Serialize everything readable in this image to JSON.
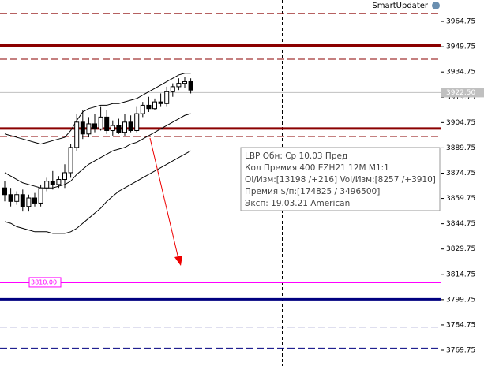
{
  "chart_data": {
    "type": "candlestick",
    "header": "SmartUpdater",
    "ylim": [
      3760.4,
      3977.4
    ],
    "yticks": [
      3964.75,
      3949.75,
      3934.75,
      3919.75,
      3904.75,
      3889.75,
      3874.75,
      3859.75,
      3844.75,
      3829.75,
      3814.75,
      3799.75,
      3784.75,
      3769.75
    ],
    "up_color": "#ffffff",
    "down_color": "#000000",
    "ohlc": [
      [
        3866,
        3870,
        3858,
        3862
      ],
      [
        3862,
        3866,
        3855,
        3858
      ],
      [
        3858,
        3864,
        3856,
        3862
      ],
      [
        3862,
        3865,
        3852,
        3855
      ],
      [
        3855,
        3862,
        3852,
        3860
      ],
      [
        3860,
        3863,
        3855,
        3857
      ],
      [
        3857,
        3868,
        3855,
        3866
      ],
      [
        3866,
        3872,
        3864,
        3870
      ],
      [
        3870,
        3876,
        3865,
        3868
      ],
      [
        3868,
        3873,
        3866,
        3871
      ],
      [
        3871,
        3880,
        3866,
        3875
      ],
      [
        3875,
        3892,
        3872,
        3890
      ],
      [
        3890,
        3910,
        3888,
        3905
      ],
      [
        3905,
        3912,
        3895,
        3898
      ],
      [
        3898,
        3908,
        3896,
        3904
      ],
      [
        3904,
        3910,
        3899,
        3901
      ],
      [
        3901,
        3914,
        3900,
        3908
      ],
      [
        3908,
        3912,
        3898,
        3900
      ],
      [
        3900,
        3906,
        3897,
        3903
      ],
      [
        3903,
        3907,
        3898,
        3899
      ],
      [
        3899,
        3910,
        3897,
        3905
      ],
      [
        3905,
        3909,
        3899,
        3900
      ],
      [
        3900,
        3914,
        3899,
        3910
      ],
      [
        3910,
        3917,
        3908,
        3915
      ],
      [
        3915,
        3920,
        3911,
        3913
      ],
      [
        3913,
        3919,
        3912,
        3917
      ],
      [
        3917,
        3922,
        3914,
        3916
      ],
      [
        3916,
        3926,
        3914,
        3923
      ],
      [
        3923,
        3928,
        3920,
        3926
      ],
      [
        3926,
        3931,
        3924,
        3928
      ],
      [
        3928,
        3932,
        3925,
        3929
      ],
      [
        3929,
        3931,
        3922,
        3924
      ]
    ],
    "bands": {
      "color": "#000000",
      "upper": [
        3898,
        3897,
        3896,
        3895,
        3894,
        3893,
        3892,
        3893,
        3894,
        3895,
        3896,
        3900,
        3906,
        3911,
        3913,
        3914,
        3915,
        3915,
        3916,
        3916,
        3917,
        3918,
        3919,
        3921,
        3923,
        3925,
        3927,
        3929,
        3931,
        3933,
        3934,
        3934
      ],
      "middle": [
        3875,
        3873,
        3871,
        3869,
        3868,
        3867,
        3866,
        3866,
        3866,
        3867,
        3868,
        3870,
        3874,
        3877,
        3880,
        3882,
        3884,
        3886,
        3888,
        3889,
        3890,
        3892,
        3893,
        3895,
        3897,
        3899,
        3901,
        3903,
        3905,
        3907,
        3909,
        3910
      ],
      "lower": [
        3846,
        3845,
        3843,
        3842,
        3841,
        3840,
        3840,
        3840,
        3839,
        3839,
        3839,
        3840,
        3842,
        3845,
        3848,
        3851,
        3854,
        3858,
        3861,
        3864,
        3866,
        3868,
        3870,
        3872,
        3874,
        3876,
        3878,
        3880,
        3882,
        3884,
        3886,
        3888
      ]
    },
    "levels": [
      {
        "value": 3969.4,
        "color": "#8b0000",
        "style": "dashed"
      },
      {
        "value": 3950.5,
        "color": "#8b0000",
        "style": "solid"
      },
      {
        "value": 3942.3,
        "color": "#8b0000",
        "style": "dashed"
      },
      {
        "value": 3922.5,
        "color": "#c0c0c0",
        "style": "thin",
        "label": "3922.50",
        "label_position": "axis"
      },
      {
        "value": 3901.2,
        "color": "#8b0000",
        "style": "solid"
      },
      {
        "value": 3896.5,
        "color": "#8b0000",
        "style": "dashed"
      },
      {
        "value": 3810,
        "color": "#ff00ff",
        "style": "medium",
        "label": "3810.00",
        "label_position": "left"
      },
      {
        "value": 3800,
        "color": "#000080",
        "style": "solid"
      },
      {
        "value": 3783.5,
        "color": "#000080",
        "style": "dashed"
      },
      {
        "value": 3771,
        "color": "#000080",
        "style": "dashed"
      }
    ],
    "annotations": [
      "LBP Обн: Ср 10.03 Пред",
      "Кол Премия 400 EZH21 12M M1:1",
      "OI/Изм:[13198 /+216]  Vol/Изм:[8257 /+3910]",
      "Премия $/п:[174825 / 3496500]",
      "Эксп: 19.03.21 American"
    ]
  }
}
